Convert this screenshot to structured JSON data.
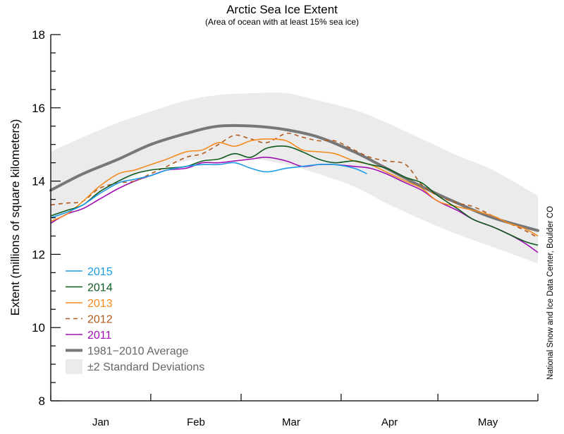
{
  "chart_data": {
    "type": "line",
    "title": "Arctic Sea Ice Extent",
    "subtitle": "(Area of ocean with at least 15% sea ice)",
    "ylabel": "Extent (millions of square kilometers)",
    "xlabel": "",
    "ylim": [
      8,
      18
    ],
    "xlim": [
      0,
      151
    ],
    "yticks": [
      8,
      10,
      12,
      14,
      16,
      18
    ],
    "y_minor_step": 0.5,
    "month_boundaries": [
      0,
      31,
      59,
      90,
      120,
      151
    ],
    "months": [
      "Jan",
      "Feb",
      "Mar",
      "Apr",
      "May"
    ],
    "credit": "National Snow and Ice Data Center, Boulder CO",
    "legend_position": "bottom-left",
    "std_band": {
      "name": "±2 Standard Deviations",
      "color": "#ebebeb",
      "x": [
        0,
        10,
        21,
        31,
        42,
        52,
        63,
        73,
        83,
        94,
        104,
        115,
        126,
        137,
        151
      ],
      "upper": [
        14.8,
        15.2,
        15.6,
        15.9,
        16.2,
        16.35,
        16.4,
        16.4,
        16.2,
        15.95,
        15.6,
        15.15,
        14.7,
        14.3,
        13.6
      ],
      "lower": [
        12.8,
        13.5,
        13.95,
        14.3,
        14.55,
        14.6,
        14.6,
        14.45,
        14.2,
        13.85,
        13.4,
        12.95,
        12.55,
        12.2,
        11.75
      ]
    },
    "average": {
      "name": "1981−2010 Average",
      "color": "#777777",
      "x": [
        0,
        10,
        21,
        31,
        42,
        52,
        63,
        73,
        83,
        94,
        104,
        115,
        126,
        137,
        151
      ],
      "values": [
        13.75,
        14.2,
        14.6,
        15.0,
        15.3,
        15.5,
        15.5,
        15.4,
        15.2,
        14.8,
        14.35,
        13.85,
        13.4,
        13.0,
        12.65
      ]
    },
    "series": [
      {
        "name": "2015",
        "color": "#1a9be8",
        "dashed": false,
        "x": [
          0,
          5,
          10,
          15,
          21,
          26,
          31,
          36,
          42,
          47,
          52,
          57,
          62,
          67,
          73,
          78,
          83,
          88,
          94,
          98
        ],
        "values": [
          13.0,
          13.15,
          13.35,
          13.65,
          13.95,
          14.05,
          14.15,
          14.3,
          14.4,
          14.45,
          14.45,
          14.5,
          14.35,
          14.25,
          14.35,
          14.4,
          14.45,
          14.45,
          14.35,
          14.2
        ]
      },
      {
        "name": "2014",
        "color": "#0e5a1e",
        "dashed": false,
        "x": [
          0,
          5,
          10,
          15,
          21,
          26,
          31,
          36,
          42,
          47,
          52,
          57,
          62,
          67,
          73,
          78,
          83,
          88,
          94,
          99,
          104,
          110,
          115,
          120,
          126,
          131,
          137,
          142,
          147,
          151
        ],
        "values": [
          13.05,
          13.2,
          13.35,
          13.7,
          14.0,
          14.2,
          14.3,
          14.35,
          14.4,
          14.55,
          14.6,
          14.75,
          14.65,
          14.9,
          14.95,
          14.8,
          14.6,
          14.5,
          14.55,
          14.45,
          14.35,
          14.1,
          13.95,
          13.6,
          13.25,
          12.95,
          12.75,
          12.55,
          12.35,
          12.25
        ]
      },
      {
        "name": "2013",
        "color": "#f58a1f",
        "dashed": false,
        "x": [
          0,
          5,
          10,
          15,
          21,
          26,
          31,
          36,
          42,
          47,
          52,
          57,
          62,
          67,
          73,
          78,
          83,
          88,
          94,
          99,
          104,
          110,
          115,
          120,
          126,
          131,
          137,
          142,
          147,
          151
        ],
        "values": [
          12.9,
          13.1,
          13.45,
          13.85,
          14.2,
          14.3,
          14.45,
          14.6,
          14.8,
          14.85,
          15.05,
          14.95,
          15.1,
          15.15,
          15.1,
          14.85,
          14.8,
          14.75,
          14.55,
          14.45,
          14.25,
          14.0,
          13.8,
          13.45,
          13.3,
          13.2,
          13.05,
          12.85,
          12.7,
          12.5
        ]
      },
      {
        "name": "2012",
        "color": "#b05a20",
        "dashed": true,
        "x": [
          0,
          5,
          10,
          15,
          21,
          26,
          31,
          36,
          42,
          47,
          52,
          57,
          62,
          67,
          73,
          78,
          83,
          88,
          94,
          99,
          104,
          110,
          115,
          120,
          126,
          131,
          137,
          142,
          147,
          151
        ],
        "values": [
          13.35,
          13.4,
          13.45,
          13.8,
          13.95,
          14.0,
          14.2,
          14.4,
          14.65,
          14.75,
          15.0,
          15.25,
          15.15,
          15.05,
          15.3,
          15.2,
          15.1,
          15.1,
          14.85,
          14.65,
          14.55,
          14.45,
          13.9,
          13.6,
          13.4,
          13.3,
          13.05,
          12.85,
          12.65,
          12.45
        ]
      },
      {
        "name": "2011",
        "color": "#a010b0",
        "dashed": false,
        "x": [
          0,
          5,
          10,
          15,
          21,
          26,
          31,
          36,
          42,
          47,
          52,
          57,
          62,
          67,
          73,
          78,
          83,
          88,
          94,
          99,
          104,
          110,
          115,
          120,
          126,
          131,
          137,
          142,
          147,
          151
        ],
        "values": [
          12.85,
          13.1,
          13.25,
          13.5,
          13.8,
          14.0,
          14.15,
          14.3,
          14.35,
          14.5,
          14.5,
          14.55,
          14.6,
          14.65,
          14.55,
          14.4,
          14.45,
          14.45,
          14.4,
          14.35,
          14.2,
          13.95,
          13.75,
          13.45,
          13.2,
          12.95,
          12.75,
          12.55,
          12.3,
          12.05
        ]
      }
    ]
  }
}
